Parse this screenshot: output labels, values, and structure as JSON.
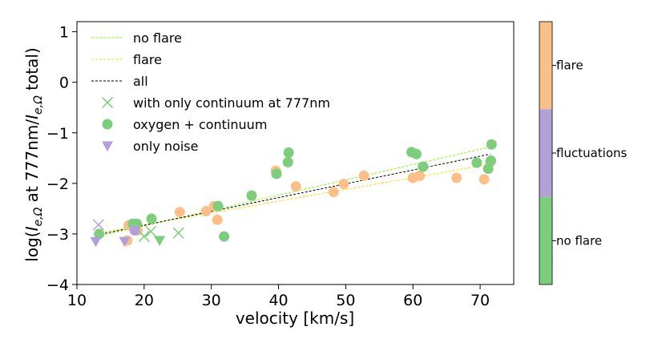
{
  "chart_data": {
    "type": "scatter",
    "xlabel": "velocity [km/s]",
    "ylabel": "log(I_{e,Ω} at 777nm/I_{e,Ω} total)",
    "ylabel_parts": {
      "prefix": "log(",
      "var1": "I",
      "sub1": "e,Ω",
      "middle": " at 777nm/",
      "var2": "I",
      "sub2": "e,Ω",
      "suffix": " total)"
    },
    "xlim": [
      10,
      75
    ],
    "ylim": [
      -4,
      1.2
    ],
    "xticks": [
      10,
      20,
      30,
      40,
      50,
      60,
      70
    ],
    "yticks": [
      1,
      0,
      -1,
      -2,
      -3,
      -4
    ],
    "ytick_labels": [
      "1",
      "0",
      "−1",
      "−2",
      "−3",
      "−4"
    ],
    "grid": false,
    "legend_position": "top-left",
    "legend": [
      {
        "label": "no flare",
        "marker": "dashed-line",
        "color": "#7fff00"
      },
      {
        "label": "flare",
        "marker": "dashed-line",
        "color": "#ffd700"
      },
      {
        "label": "all",
        "marker": "dashed-line",
        "color": "#000000"
      },
      {
        "label": "with only continuum at 777nm",
        "marker": "x",
        "color": "#7ccd7c"
      },
      {
        "label": "oxygen + continuum",
        "marker": "circle",
        "color": "#7ccd7c"
      },
      {
        "label": "only noise",
        "marker": "triangle-down",
        "color": "#b4a0d8"
      }
    ],
    "fit_lines": [
      {
        "name": "no flare",
        "color": "#7fff00",
        "x": [
          13,
          71.5
        ],
        "y": [
          -3.05,
          -1.28
        ]
      },
      {
        "name": "flare",
        "color": "#ffd700",
        "x": [
          13,
          71.5
        ],
        "y": [
          -2.98,
          -1.62
        ]
      },
      {
        "name": "all",
        "color": "#000000",
        "x": [
          13,
          71.5
        ],
        "y": [
          -3.02,
          -1.42
        ]
      }
    ],
    "series": [
      {
        "name": "oxygen + continuum (flare)",
        "marker": "circle",
        "color": "#fbc08a",
        "points": [
          [
            17.5,
            -3.13
          ],
          [
            17.7,
            -2.83
          ],
          [
            19,
            -2.93
          ],
          [
            25.3,
            -2.57
          ],
          [
            29.2,
            -2.55
          ],
          [
            30.4,
            -2.45
          ],
          [
            30.9,
            -2.72
          ],
          [
            39.6,
            -1.75
          ],
          [
            42.6,
            -2.06
          ],
          [
            48.2,
            -2.17
          ],
          [
            49.7,
            -2.01
          ],
          [
            52.7,
            -1.85
          ],
          [
            60,
            -1.89
          ],
          [
            61,
            -1.85
          ],
          [
            66.5,
            -1.89
          ],
          [
            70.6,
            -1.92
          ],
          [
            71.5,
            -1.58
          ]
        ]
      },
      {
        "name": "oxygen + continuum (no flare)",
        "marker": "circle",
        "color": "#7ccd7c",
        "points": [
          [
            13.3,
            -3
          ],
          [
            18.3,
            -2.8
          ],
          [
            18.9,
            -2.8
          ],
          [
            21.1,
            -2.7
          ],
          [
            31,
            -2.45
          ],
          [
            31.9,
            -3.05
          ],
          [
            36,
            -2.24
          ],
          [
            39.7,
            -1.81
          ],
          [
            41.5,
            -1.39
          ],
          [
            41.4,
            -1.58
          ],
          [
            59.8,
            -1.38
          ],
          [
            60.5,
            -1.42
          ],
          [
            61.5,
            -1.67
          ],
          [
            69.5,
            -1.59
          ],
          [
            71.2,
            -1.71
          ],
          [
            71.7,
            -1.23
          ],
          [
            71.6,
            -1.55
          ]
        ]
      },
      {
        "name": "oxygen + continuum (fluctuations)",
        "marker": "circle",
        "color": "#b4a0d8",
        "points": [
          [
            18.6,
            -2.93
          ]
        ]
      },
      {
        "name": "with only continuum at 777nm (no flare)",
        "marker": "x",
        "color": "#7ccd7c",
        "points": [
          [
            20,
            -3.05
          ],
          [
            21,
            -2.95
          ],
          [
            25.1,
            -2.98
          ]
        ]
      },
      {
        "name": "with only continuum at 777nm (fluctuations)",
        "marker": "x",
        "color": "#b4a0d8",
        "points": [
          [
            13.2,
            -2.82
          ]
        ]
      },
      {
        "name": "only noise (fluctuations)",
        "marker": "triangle-down",
        "color": "#b4a0d8",
        "points": [
          [
            12.8,
            -3.15
          ],
          [
            17.1,
            -3.15
          ]
        ]
      },
      {
        "name": "only noise (no flare)",
        "marker": "triangle-down",
        "color": "#7ccd7c",
        "points": [
          [
            22.3,
            -3.13
          ]
        ]
      }
    ],
    "colorbar": {
      "segments": [
        {
          "label": "flare",
          "color": "#fbc08a"
        },
        {
          "label": "fluctuations",
          "color": "#b4a0d8"
        },
        {
          "label": "no flare",
          "color": "#7ccd7c"
        }
      ]
    }
  }
}
